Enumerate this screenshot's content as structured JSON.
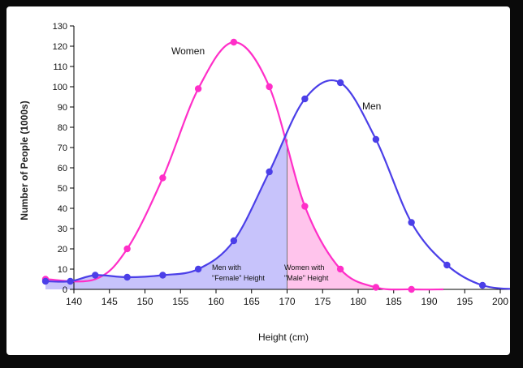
{
  "chart_data": {
    "type": "line",
    "title": "",
    "xlabel": "Height (cm)",
    "ylabel": "Number of People (1000s)",
    "xlim": [
      140,
      202
    ],
    "ylim": [
      0,
      130
    ],
    "x_ticks": [
      140,
      145,
      150,
      155,
      160,
      165,
      170,
      175,
      180,
      185,
      190,
      195,
      200
    ],
    "y_ticks": [
      0,
      10,
      20,
      30,
      40,
      50,
      60,
      70,
      80,
      90,
      100,
      110,
      120,
      130
    ],
    "grid": false,
    "legend": "none",
    "threshold_x": 170,
    "series": [
      {
        "name": "Women",
        "color": "#ff2fc8",
        "curve": [
          [
            136,
            5
          ],
          [
            143,
            5
          ],
          [
            147.5,
            20
          ],
          [
            152.5,
            55
          ],
          [
            157.5,
            99
          ],
          [
            162.5,
            122
          ],
          [
            167.5,
            100
          ],
          [
            172.5,
            41
          ],
          [
            177.5,
            10
          ],
          [
            182.5,
            1
          ],
          [
            187.5,
            0
          ],
          [
            192,
            0
          ]
        ],
        "points": [
          [
            136,
            5
          ],
          [
            147.5,
            20
          ],
          [
            152.5,
            55
          ],
          [
            157.5,
            99
          ],
          [
            162.5,
            122
          ],
          [
            167.5,
            100
          ],
          [
            172.5,
            41
          ],
          [
            177.5,
            10
          ],
          [
            182.5,
            1
          ],
          [
            187.5,
            0
          ]
        ]
      },
      {
        "name": "Men",
        "color": "#4b3fe8",
        "curve": [
          [
            136,
            4
          ],
          [
            139.5,
            4
          ],
          [
            143,
            7
          ],
          [
            147.5,
            6
          ],
          [
            152.5,
            7
          ],
          [
            157.5,
            10
          ],
          [
            162.5,
            24
          ],
          [
            167.5,
            58
          ],
          [
            172.5,
            94
          ],
          [
            177.5,
            102
          ],
          [
            182.5,
            74
          ],
          [
            187.5,
            33
          ],
          [
            192.5,
            12
          ],
          [
            197.5,
            2
          ],
          [
            203,
            0
          ]
        ],
        "points": [
          [
            136,
            4
          ],
          [
            139.5,
            4
          ],
          [
            143,
            7
          ],
          [
            147.5,
            6
          ],
          [
            152.5,
            7
          ],
          [
            157.5,
            10
          ],
          [
            162.5,
            24
          ],
          [
            167.5,
            58
          ],
          [
            172.5,
            94
          ],
          [
            177.5,
            102
          ],
          [
            182.5,
            74
          ],
          [
            187.5,
            33
          ],
          [
            192.5,
            12
          ],
          [
            197.5,
            2
          ]
        ]
      }
    ],
    "annotations": {
      "women_label": "Women",
      "men_label": "Men",
      "men_female_line1": "Men with",
      "men_female_line2": "\"Female\" Height",
      "women_male_line1": "Women with",
      "women_male_line2": "\"Male\" Height"
    },
    "fills": {
      "men_female": "#c7c3fb",
      "women_male": "#ffc4ec"
    }
  }
}
